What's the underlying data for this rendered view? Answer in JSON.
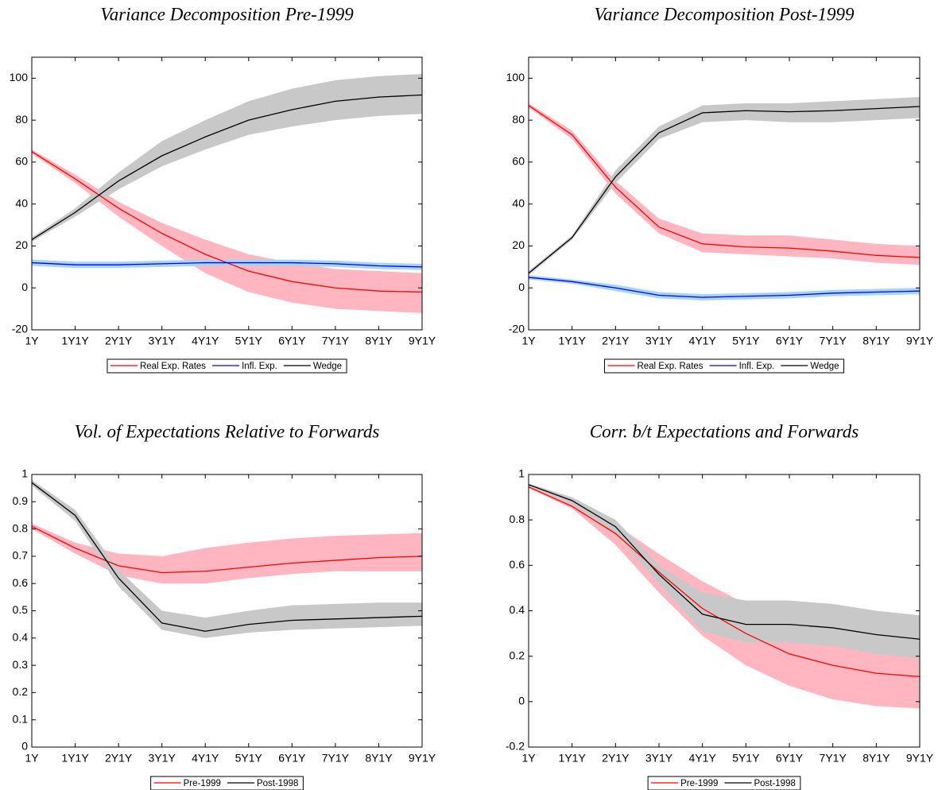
{
  "chart_data": [
    {
      "type": "line",
      "title": "Variance Decomposition Pre-1999",
      "categories": [
        "1Y",
        "1Y1Y",
        "2Y1Y",
        "3Y1Y",
        "4Y1Y",
        "5Y1Y",
        "6Y1Y",
        "7Y1Y",
        "8Y1Y",
        "9Y1Y"
      ],
      "ylim": [
        -20,
        110
      ],
      "yticks": [
        -20,
        0,
        20,
        40,
        60,
        80,
        100
      ],
      "grid": false,
      "legend": "bottom",
      "series": [
        {
          "name": "Real Exp. Rates",
          "color": "#ff0000",
          "band_color": "#ffb6c1",
          "values": [
            65,
            52,
            38,
            26,
            16,
            8,
            3,
            0,
            -1.5,
            -2
          ],
          "lower": [
            64,
            50,
            34,
            20,
            7,
            -2,
            -7,
            -10,
            -11,
            -12
          ],
          "upper": [
            66,
            54,
            41,
            31,
            23,
            16,
            12,
            9,
            8,
            7
          ]
        },
        {
          "name": "Infl. Exp.",
          "color": "#0000ff",
          "band_color": "#a6d5f0",
          "values": [
            12,
            11,
            11,
            11.5,
            12,
            12,
            12,
            11.5,
            10.5,
            10
          ],
          "lower": [
            10.5,
            9.5,
            9.5,
            10,
            10.5,
            10.5,
            10.5,
            10,
            9,
            8.5
          ],
          "upper": [
            13.5,
            12.5,
            12.5,
            13,
            13.5,
            13.5,
            13.5,
            13,
            12,
            11.5
          ]
        },
        {
          "name": "Wedge",
          "color": "#000000",
          "band_color": "#c8c8c8",
          "values": [
            23,
            36,
            51,
            63,
            72,
            80,
            85,
            89,
            91,
            92
          ],
          "lower": [
            22,
            34,
            47,
            58,
            66,
            73,
            77,
            80,
            82,
            83
          ],
          "upper": [
            24,
            38,
            55,
            70,
            80,
            89,
            95,
            99,
            101,
            102
          ]
        }
      ]
    },
    {
      "type": "line",
      "title": "Variance Decomposition Post-1999",
      "categories": [
        "1Y",
        "1Y1Y",
        "2Y1Y",
        "3Y1Y",
        "4Y1Y",
        "5Y1Y",
        "6Y1Y",
        "7Y1Y",
        "8Y1Y",
        "9Y1Y"
      ],
      "ylim": [
        -20,
        110
      ],
      "yticks": [
        -20,
        0,
        20,
        40,
        60,
        80,
        100
      ],
      "grid": false,
      "legend": "bottom",
      "series": [
        {
          "name": "Real Exp. Rates",
          "color": "#ff0000",
          "band_color": "#ffb6c1",
          "values": [
            87,
            73,
            48,
            29,
            21,
            19.5,
            19,
            17.5,
            15.5,
            14.5
          ],
          "lower": [
            86,
            71,
            45,
            26,
            17,
            16,
            15,
            14,
            12,
            11
          ],
          "upper": [
            88,
            75,
            51,
            33,
            26,
            25,
            25,
            23,
            21,
            20
          ]
        },
        {
          "name": "Infl. Exp.",
          "color": "#0000ff",
          "band_color": "#a6d5f0",
          "values": [
            5,
            3,
            0,
            -3.5,
            -4.5,
            -4,
            -3.5,
            -2.5,
            -2,
            -1.5
          ],
          "lower": [
            4,
            2,
            -1.5,
            -5,
            -6,
            -5.5,
            -5,
            -4,
            -3.5,
            -3
          ],
          "upper": [
            6,
            4,
            1.5,
            -2,
            -3,
            -2.5,
            -2,
            -1,
            -0.5,
            0
          ]
        },
        {
          "name": "Wedge",
          "color": "#000000",
          "band_color": "#c8c8c8",
          "values": [
            7,
            24,
            53,
            74,
            83.5,
            84.5,
            84,
            84.5,
            85.5,
            86.5
          ],
          "lower": [
            6,
            23,
            50,
            71,
            79,
            80,
            79,
            79,
            80,
            81
          ],
          "upper": [
            8,
            25,
            56,
            77,
            87,
            88,
            88,
            89,
            90,
            91
          ]
        }
      ]
    },
    {
      "type": "line",
      "title": "Vol. of Expectations Relative to Forwards",
      "categories": [
        "1Y",
        "1Y1Y",
        "2Y1Y",
        "3Y1Y",
        "4Y1Y",
        "5Y1Y",
        "6Y1Y",
        "7Y1Y",
        "8Y1Y",
        "9Y1Y"
      ],
      "ylim": [
        0,
        1
      ],
      "yticks": [
        0,
        0.1,
        0.2,
        0.3,
        0.4,
        0.5,
        0.6,
        0.7,
        0.8,
        0.9,
        1
      ],
      "grid": false,
      "legend": "bottom",
      "series": [
        {
          "name": "Pre-1999",
          "color": "#ff0000",
          "band_color": "#ffb6c1",
          "values": [
            0.81,
            0.73,
            0.665,
            0.64,
            0.645,
            0.66,
            0.675,
            0.685,
            0.695,
            0.7
          ],
          "lower": [
            0.8,
            0.71,
            0.63,
            0.6,
            0.6,
            0.62,
            0.635,
            0.645,
            0.645,
            0.645
          ],
          "upper": [
            0.82,
            0.75,
            0.71,
            0.7,
            0.73,
            0.75,
            0.765,
            0.775,
            0.78,
            0.785
          ]
        },
        {
          "name": "Post-1998",
          "color": "#000000",
          "band_color": "#c8c8c8",
          "values": [
            0.97,
            0.85,
            0.62,
            0.455,
            0.425,
            0.45,
            0.465,
            0.47,
            0.475,
            0.48
          ],
          "lower": [
            0.96,
            0.83,
            0.59,
            0.43,
            0.4,
            0.42,
            0.43,
            0.435,
            0.44,
            0.445
          ],
          "upper": [
            0.98,
            0.87,
            0.65,
            0.5,
            0.475,
            0.5,
            0.52,
            0.525,
            0.53,
            0.53
          ]
        }
      ]
    },
    {
      "type": "line",
      "title": "Corr. b/t Expectations and Forwards",
      "categories": [
        "1Y",
        "1Y1Y",
        "2Y1Y",
        "3Y1Y",
        "4Y1Y",
        "5Y1Y",
        "6Y1Y",
        "7Y1Y",
        "8Y1Y",
        "9Y1Y"
      ],
      "ylim": [
        -0.2,
        1
      ],
      "yticks": [
        -0.2,
        0,
        0.2,
        0.4,
        0.6,
        0.8,
        1
      ],
      "grid": false,
      "legend": "bottom",
      "series": [
        {
          "name": "Pre-1999",
          "color": "#ff0000",
          "band_color": "#ffb6c1",
          "values": [
            0.945,
            0.86,
            0.74,
            0.57,
            0.41,
            0.3,
            0.21,
            0.16,
            0.125,
            0.11
          ],
          "lower": [
            0.94,
            0.85,
            0.69,
            0.48,
            0.29,
            0.16,
            0.07,
            0.01,
            -0.02,
            -0.03
          ],
          "upper": [
            0.95,
            0.87,
            0.78,
            0.65,
            0.53,
            0.43,
            0.36,
            0.31,
            0.26,
            0.24
          ]
        },
        {
          "name": "Post-1998",
          "color": "#000000",
          "band_color": "#c8c8c8",
          "values": [
            0.955,
            0.885,
            0.77,
            0.56,
            0.385,
            0.34,
            0.34,
            0.325,
            0.295,
            0.275
          ],
          "lower": [
            0.95,
            0.87,
            0.74,
            0.52,
            0.31,
            0.26,
            0.26,
            0.245,
            0.21,
            0.19
          ],
          "upper": [
            0.96,
            0.9,
            0.8,
            0.6,
            0.48,
            0.445,
            0.445,
            0.43,
            0.4,
            0.38
          ]
        }
      ]
    }
  ]
}
